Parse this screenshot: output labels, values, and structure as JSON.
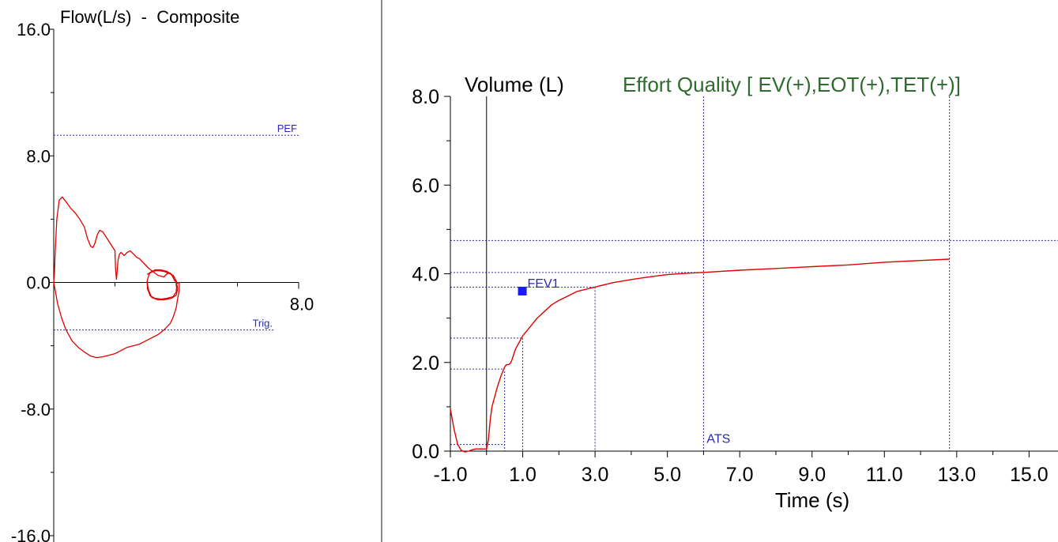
{
  "colors": {
    "curve": "#e00000",
    "guide": "#2a2ab0",
    "axis": "#000000",
    "quality_text": "#2e6b2e",
    "marker": "#1a1aff",
    "divider": "#888888"
  },
  "chart_data": [
    {
      "id": "flow-volume",
      "type": "line",
      "title": "Flow(L/s)  -  Composite",
      "xlabel": "",
      "ylabel": "",
      "xlim": [
        0,
        8.0
      ],
      "ylim": [
        -16.0,
        16.0
      ],
      "y_tick_labels": [
        "16.0",
        "8.0",
        "0.0",
        "-8.0",
        "-16.0"
      ],
      "y_tick_values": [
        16,
        8,
        0,
        -8,
        -16
      ],
      "y_minor_ticks": [
        12,
        4,
        -4,
        -12
      ],
      "x_tick_labels": [
        "8.0"
      ],
      "x_tick_values": [
        8
      ],
      "x_minor_ticks": [
        2,
        4,
        6
      ],
      "reference_lines": [
        {
          "label": "PEF",
          "y": 9.3,
          "x_end": 8.0
        },
        {
          "label": "Trig.",
          "y": -3.0,
          "x_end": 7.2
        }
      ],
      "series": [
        {
          "x": [
            0.0,
            0.02,
            0.05,
            0.1,
            0.18,
            0.28,
            0.4,
            0.55,
            0.7,
            0.85,
            1.0,
            1.1,
            1.2,
            1.28,
            1.35,
            1.42,
            1.5,
            1.6,
            1.7,
            1.8,
            1.9,
            2.0,
            2.02,
            2.05,
            2.1,
            2.15,
            2.2,
            2.3,
            2.4,
            2.5,
            2.6,
            2.7,
            2.8,
            2.9,
            3.0,
            3.1,
            3.2,
            3.3,
            3.4,
            3.5,
            3.6,
            3.7,
            3.8,
            3.85,
            3.9,
            3.95,
            4.0,
            4.05,
            4.08,
            4.1,
            4.1,
            4.05,
            4.0,
            3.9,
            3.8,
            3.6,
            3.4,
            3.2,
            3.0,
            2.8,
            2.6,
            2.4,
            2.2,
            2.0,
            1.8,
            1.6,
            1.4,
            1.2,
            1.0,
            0.8,
            0.6,
            0.4,
            0.25,
            0.12,
            0.05,
            0.0
          ],
          "y": [
            0.0,
            0.5,
            2.0,
            4.0,
            5.2,
            5.4,
            5.1,
            4.7,
            4.4,
            4.0,
            3.5,
            2.8,
            2.3,
            2.2,
            2.5,
            3.0,
            3.3,
            3.2,
            2.9,
            2.6,
            2.3,
            2.0,
            0.8,
            0.2,
            1.4,
            1.8,
            1.9,
            1.7,
            1.9,
            2.0,
            1.8,
            1.6,
            1.5,
            1.3,
            1.1,
            0.9,
            0.75,
            0.6,
            0.45,
            0.4,
            0.35,
            0.55,
            0.6,
            0.5,
            0.3,
            0.1,
            0.05,
            -0.05,
            0.0,
            0.0,
            -0.5,
            -1.0,
            -1.6,
            -2.2,
            -2.6,
            -3.0,
            -3.3,
            -3.5,
            -3.7,
            -3.9,
            -4.0,
            -4.1,
            -4.3,
            -4.5,
            -4.6,
            -4.7,
            -4.75,
            -4.65,
            -4.4,
            -4.1,
            -3.7,
            -3.0,
            -2.2,
            -1.3,
            -0.5,
            0.0
          ]
        },
        {
          "x": [
            3.05,
            3.2,
            3.4,
            3.6,
            3.8,
            3.95,
            4.02,
            4.0,
            3.9,
            3.7,
            3.5,
            3.3,
            3.15,
            3.06,
            3.05,
            3.12,
            3.3,
            3.5,
            3.7,
            3.9,
            4.0,
            4.05,
            4.0,
            3.85,
            3.6,
            3.4,
            3.2,
            3.1,
            3.05
          ],
          "y": [
            0.5,
            0.7,
            0.75,
            0.7,
            0.55,
            0.3,
            -0.1,
            -0.6,
            -0.9,
            -1.0,
            -1.05,
            -1.0,
            -0.85,
            -0.4,
            0.1,
            0.55,
            0.8,
            0.8,
            0.7,
            0.45,
            0.1,
            -0.4,
            -0.8,
            -1.0,
            -1.1,
            -1.1,
            -0.95,
            -0.5,
            0.0
          ]
        }
      ]
    },
    {
      "id": "volume-time",
      "type": "line",
      "ylabel": "Volume (L)",
      "xlabel": "Time (s)",
      "subtitle": "Effort Quality [ EV(+),EOT(+),TET(+)]",
      "xlim": [
        -1.0,
        15.8
      ],
      "ylim": [
        0.0,
        8.0
      ],
      "y_tick_labels": [
        "8.0",
        "6.0",
        "4.0",
        "2.0",
        "0.0"
      ],
      "y_tick_values": [
        8,
        6,
        4,
        2,
        0
      ],
      "y_minor_ticks": [
        1,
        3,
        5,
        7
      ],
      "x_tick_labels": [
        "-1.0",
        "1.0",
        "3.0",
        "5.0",
        "7.0",
        "9.0",
        "11.0",
        "13.0",
        "15.0"
      ],
      "x_tick_values": [
        -1,
        1,
        3,
        5,
        7,
        9,
        11,
        13,
        15
      ],
      "x_minor_ticks": [
        0,
        2,
        4,
        6,
        8,
        10,
        12,
        14
      ],
      "time_zero_line": 0.0,
      "vertical_guides": [
        {
          "x": 0.5,
          "y_top": 1.8
        },
        {
          "x": 1.0,
          "y_top": 2.55
        },
        {
          "x": 3.0,
          "y_top": 3.7
        },
        {
          "x": 6.0,
          "y_top": 8.0
        },
        {
          "x": 12.8,
          "y_top": 8.0
        }
      ],
      "horizontal_guides": [
        {
          "y": 0.15,
          "x_end": 0.5
        },
        {
          "y": 1.85,
          "x_end": 0.5
        },
        {
          "y": 2.55,
          "x_end": 1.0
        },
        {
          "y": 3.7,
          "x_end": 3.0
        },
        {
          "y": 4.03,
          "x_end": 6.0
        },
        {
          "y": 4.75,
          "x_end": 15.8
        }
      ],
      "annotations": [
        {
          "label": "FEV1",
          "x": 1.0,
          "y": 3.6
        },
        {
          "label": "ATS",
          "x": 6.0,
          "y": 0.1
        }
      ],
      "fev1_marker": {
        "x": 1.0,
        "y": 3.6
      },
      "series": [
        {
          "x": [
            -1.0,
            -0.9,
            -0.8,
            -0.7,
            -0.6,
            -0.5,
            -0.4,
            -0.3,
            -0.2,
            -0.1,
            0.0,
            0.05,
            0.1,
            0.15,
            0.2,
            0.3,
            0.4,
            0.5,
            0.55,
            0.6,
            0.65,
            0.7,
            0.8,
            0.9,
            1.0,
            1.2,
            1.4,
            1.6,
            1.8,
            2.0,
            2.25,
            2.5,
            2.75,
            3.0,
            3.5,
            4.0,
            4.5,
            5.0,
            5.5,
            6.0,
            7.0,
            8.0,
            9.0,
            10.0,
            11.0,
            12.0,
            12.8
          ],
          "y": [
            0.95,
            0.5,
            0.15,
            0.02,
            -0.02,
            0.0,
            0.03,
            0.05,
            0.05,
            0.05,
            0.05,
            0.25,
            0.7,
            1.0,
            1.15,
            1.45,
            1.7,
            1.9,
            1.95,
            1.95,
            1.97,
            2.05,
            2.3,
            2.45,
            2.6,
            2.8,
            3.0,
            3.15,
            3.3,
            3.4,
            3.5,
            3.6,
            3.65,
            3.7,
            3.8,
            3.87,
            3.93,
            3.98,
            4.01,
            4.03,
            4.08,
            4.12,
            4.16,
            4.2,
            4.26,
            4.3,
            4.33
          ]
        }
      ]
    }
  ]
}
